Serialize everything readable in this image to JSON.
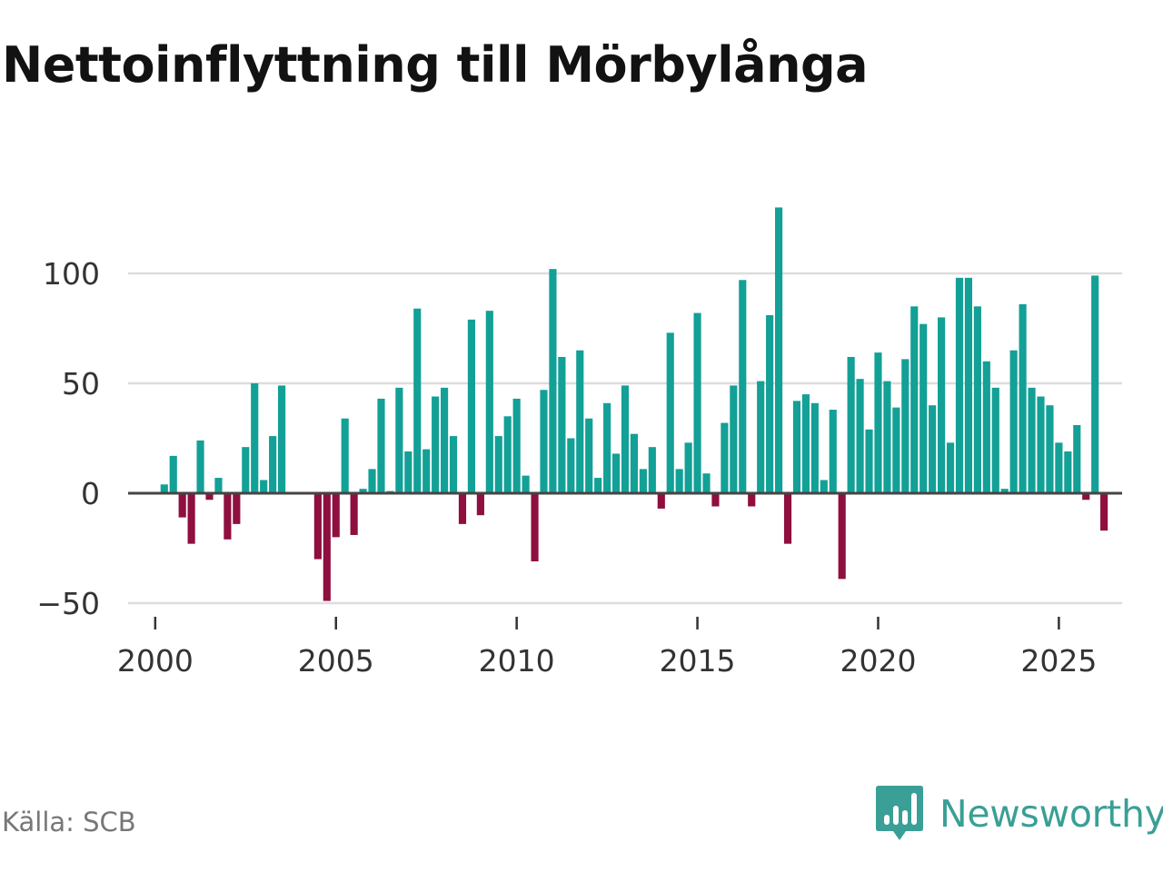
{
  "header": {
    "title": "Nettoinflyttning till Mörbylånga"
  },
  "footer": {
    "source": "Källa: SCB",
    "brand": "Newsworthy"
  },
  "colors": {
    "positive": "#13a096",
    "negative": "#8f0f3f",
    "brand": "#3a9f96",
    "gridline": "#dddddd",
    "zeroline": "#444444"
  },
  "chart_data": {
    "type": "bar",
    "title": "Nettoinflyttning till Mörbylånga",
    "xlabel": "",
    "ylabel": "",
    "frequency": "quarterly",
    "start": "2000Q1",
    "xlim": [
      1999.25,
      2026.75
    ],
    "ylim": [
      -50,
      130
    ],
    "yticks": [
      -50,
      0,
      50,
      100
    ],
    "ytick_labels": [
      "−50",
      "0",
      "50",
      "100"
    ],
    "xticks": [
      2000,
      2005,
      2010,
      2015,
      2020,
      2025
    ],
    "xtick_labels": [
      "2000",
      "2005",
      "2010",
      "2015",
      "2020",
      "2025"
    ],
    "grid": true,
    "values": [
      0,
      4,
      17,
      -11,
      -23,
      24,
      -3,
      7,
      -21,
      -14,
      21,
      50,
      6,
      26,
      49,
      0,
      0,
      0,
      -30,
      -49,
      -20,
      34,
      -19,
      2,
      11,
      43,
      1,
      48,
      19,
      84,
      20,
      44,
      48,
      26,
      -14,
      79,
      -10,
      83,
      26,
      35,
      43,
      8,
      -31,
      47,
      102,
      62,
      25,
      65,
      34,
      7,
      41,
      18,
      49,
      27,
      11,
      21,
      -7,
      73,
      11,
      23,
      82,
      9,
      -6,
      32,
      49,
      97,
      -6,
      51,
      81,
      130,
      -23,
      42,
      45,
      41,
      6,
      38,
      -39,
      62,
      52,
      29,
      64,
      51,
      39,
      61,
      85,
      77,
      40,
      80,
      23,
      98,
      98,
      85,
      60,
      48,
      2,
      65,
      86,
      48,
      44,
      40,
      23,
      19,
      31,
      -3,
      99,
      -17
    ]
  }
}
